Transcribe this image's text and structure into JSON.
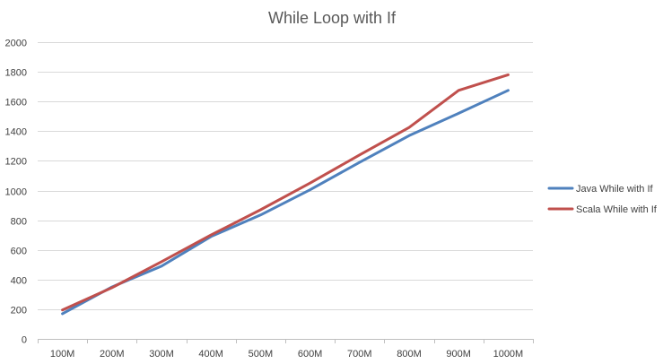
{
  "chart_data": {
    "type": "line",
    "title": "While Loop with If",
    "xlabel": "",
    "ylabel": "",
    "categories": [
      "100M",
      "200M",
      "300M",
      "400M",
      "500M",
      "600M",
      "700M",
      "800M",
      "900M",
      "1000M"
    ],
    "ylim": [
      0,
      2000
    ],
    "yticks": [
      0,
      200,
      400,
      600,
      800,
      1000,
      1200,
      1400,
      1600,
      1800,
      2000
    ],
    "grid": true,
    "legend_position": "right",
    "series": [
      {
        "name": "Java While with If",
        "color": "#4F81BD",
        "values": [
          170,
          350,
          490,
          690,
          835,
          1005,
          1190,
          1370,
          1520,
          1675
        ]
      },
      {
        "name": "Scala While with If",
        "color": "#C0504D",
        "values": [
          195,
          345,
          520,
          700,
          870,
          1050,
          1240,
          1425,
          1675,
          1780
        ]
      }
    ]
  }
}
